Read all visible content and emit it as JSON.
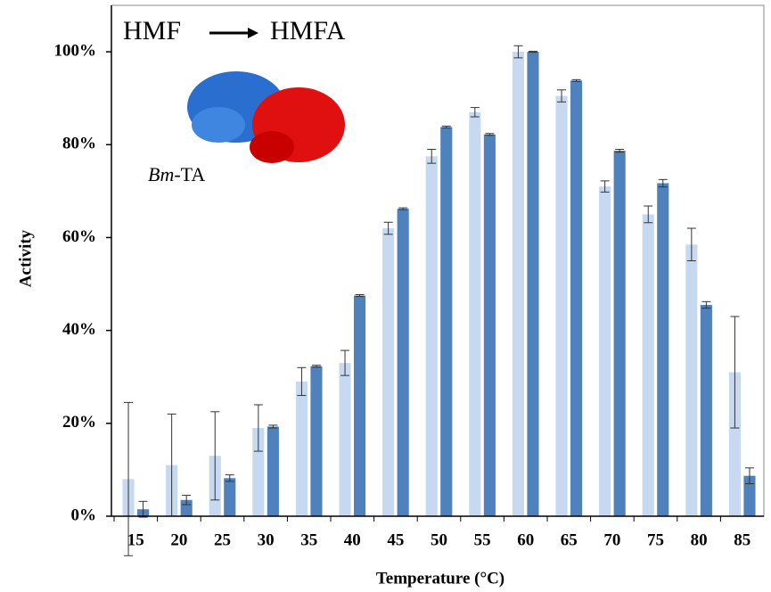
{
  "chart_data": {
    "type": "bar",
    "x_label": "Temperature (°C)",
    "y_label": "Activity",
    "annotations": [
      "HMF",
      "HMFA"
    ],
    "enzyme_label": [
      "Bm",
      "-TA"
    ],
    "categories": [
      "15",
      "20",
      "25",
      "30",
      "35",
      "40",
      "45",
      "50",
      "55",
      "60",
      "65",
      "70",
      "75",
      "80",
      "85"
    ],
    "series": [
      {
        "color": "#c6d9f0",
        "values": [
          8,
          11,
          13,
          19,
          29,
          33,
          62,
          77.5,
          87,
          100,
          90.5,
          71,
          65,
          58.5,
          31
        ],
        "errors": [
          16.5,
          11,
          9.5,
          5,
          3,
          2.7,
          1.3,
          1.5,
          1,
          1.3,
          1.3,
          1.2,
          1.8,
          3.5,
          12
        ]
      },
      {
        "color": "#4f81bd",
        "values": [
          1.5,
          3.5,
          8.2,
          19.3,
          32.3,
          47.5,
          66.2,
          83.8,
          82.2,
          100,
          93.8,
          78.7,
          71.7,
          45.5,
          8.7
        ],
        "errors": [
          1.7,
          1,
          0.7,
          0.3,
          0.2,
          0.2,
          0.2,
          0.2,
          0.2,
          0.1,
          0.2,
          0.3,
          0.8,
          0.7,
          1.7
        ]
      }
    ],
    "ylim": [
      0,
      110
    ],
    "yticks": [
      {
        "value": 0,
        "label": "0%"
      },
      {
        "value": 20,
        "label": "20%"
      },
      {
        "value": 40,
        "label": "40%"
      },
      {
        "value": 60,
        "label": "60%"
      },
      {
        "value": 80,
        "label": "80%"
      },
      {
        "value": 100,
        "label": "100%"
      }
    ]
  }
}
